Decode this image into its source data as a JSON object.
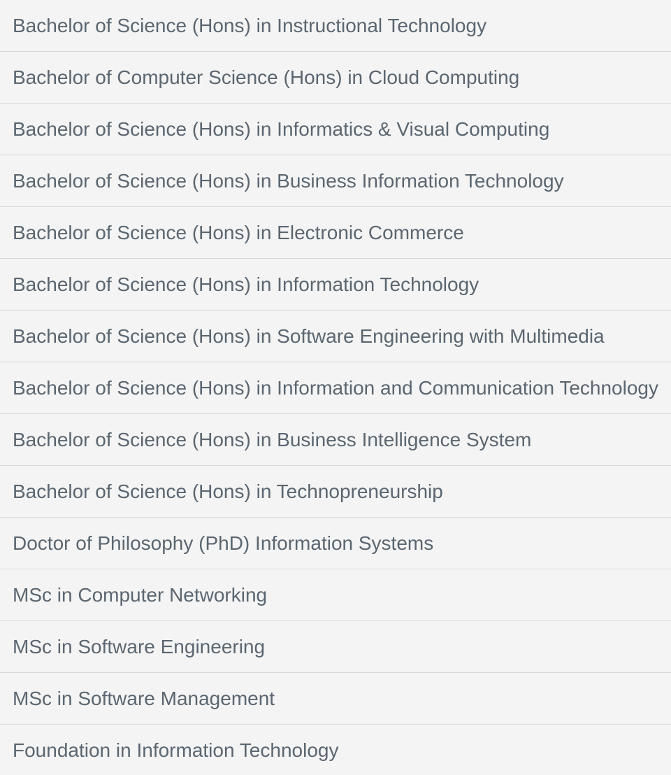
{
  "programs": [
    "Bachelor of Science (Hons) in Instructional Technology",
    "Bachelor of Computer Science (Hons) in Cloud Computing",
    "Bachelor of Science (Hons) in Informatics & Visual Computing",
    "Bachelor of Science (Hons) in Business Information Technology",
    "Bachelor of Science (Hons) in Electronic Commerce",
    "Bachelor of Science (Hons) in Information Technology",
    "Bachelor of Science (Hons) in Software Engineering with Multimedia",
    "Bachelor of Science (Hons) in Information and Communication Technology",
    "Bachelor of Science (Hons) in Business Intelligence System",
    "Bachelor of Science (Hons) in Technopreneurship",
    "Doctor of Philosophy (PhD) Information Systems",
    "MSc in Computer Networking",
    "MSc in Software Engineering",
    "MSc in Software Management",
    "Foundation in Information Technology"
  ]
}
